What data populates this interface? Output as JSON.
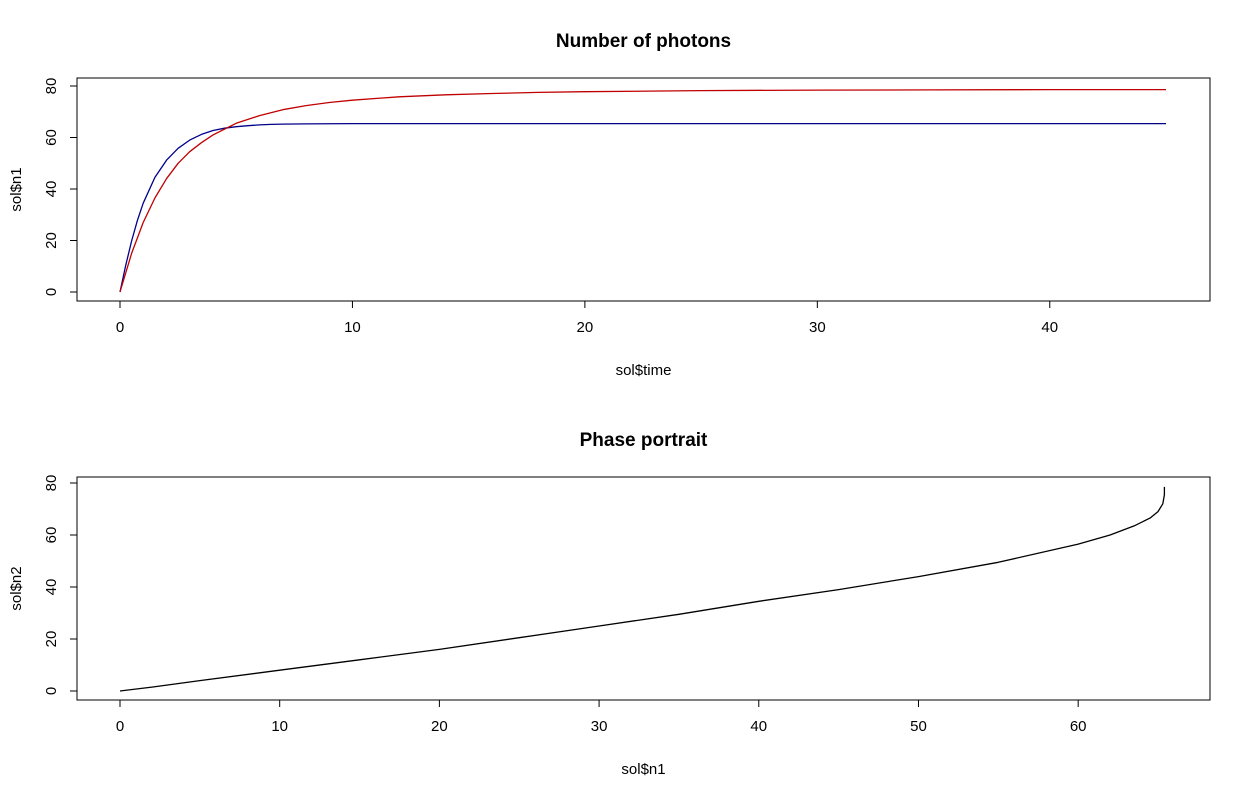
{
  "chart_data": [
    {
      "type": "line",
      "title": "Number of photons",
      "xlabel": "sol$time",
      "ylabel": "sol$n1",
      "xlim": [
        0,
        45
      ],
      "ylim": [
        0,
        80
      ],
      "xticks": [
        "0",
        "10",
        "20",
        "30",
        "40"
      ],
      "yticks": [
        "0",
        "20",
        "40",
        "60",
        "80"
      ],
      "grid": false,
      "series": [
        {
          "color": "#00008b",
          "x": [
            0,
            0.25,
            0.5,
            0.75,
            1,
            1.5,
            2,
            2.5,
            3,
            3.5,
            4,
            4.5,
            5,
            5.5,
            6,
            6.5,
            7,
            8,
            10,
            15,
            20,
            25,
            30,
            35,
            40,
            45
          ],
          "y": [
            0,
            10.5,
            19.8,
            27.8,
            34.5,
            44.5,
            51.2,
            55.8,
            59.0,
            61.2,
            62.7,
            63.6,
            64.2,
            64.6,
            64.9,
            65.1,
            65.2,
            65.3,
            65.4,
            65.4,
            65.4,
            65.4,
            65.4,
            65.4,
            65.4,
            65.4
          ]
        },
        {
          "color": "#c00000",
          "x": [
            0,
            0.5,
            1,
            1.5,
            2,
            2.5,
            3,
            3.5,
            4,
            5,
            6,
            7,
            8,
            9,
            10,
            12,
            14,
            16,
            18,
            20,
            25,
            30,
            35,
            40,
            45
          ],
          "y": [
            0,
            15.0,
            27.0,
            36.5,
            44.0,
            50.0,
            54.5,
            58.0,
            61.0,
            65.5,
            68.5,
            70.8,
            72.4,
            73.6,
            74.5,
            75.8,
            76.6,
            77.1,
            77.5,
            77.8,
            78.2,
            78.4,
            78.5,
            78.6,
            78.6
          ]
        }
      ]
    },
    {
      "type": "line",
      "title": "Phase portrait",
      "xlabel": "sol$n1",
      "ylabel": "sol$n2",
      "xlim": [
        0,
        65.5
      ],
      "ylim": [
        0,
        80
      ],
      "xticks": [
        "0",
        "10",
        "20",
        "30",
        "40",
        "50",
        "60"
      ],
      "yticks": [
        "0",
        "20",
        "40",
        "60",
        "80"
      ],
      "grid": false,
      "series": [
        {
          "color": "#000000",
          "x": [
            0,
            2,
            5,
            10,
            15,
            20,
            25,
            30,
            35,
            40,
            45,
            50,
            55,
            60,
            62,
            63.5,
            64.5,
            65.0,
            65.3,
            65.4,
            65.4
          ],
          "y": [
            0,
            1.5,
            4.0,
            8.0,
            12.0,
            16.0,
            20.5,
            25.0,
            29.5,
            34.5,
            39.0,
            44.0,
            49.5,
            56.5,
            60.0,
            63.5,
            66.5,
            69.0,
            72.0,
            75.5,
            78.5
          ]
        }
      ]
    }
  ]
}
